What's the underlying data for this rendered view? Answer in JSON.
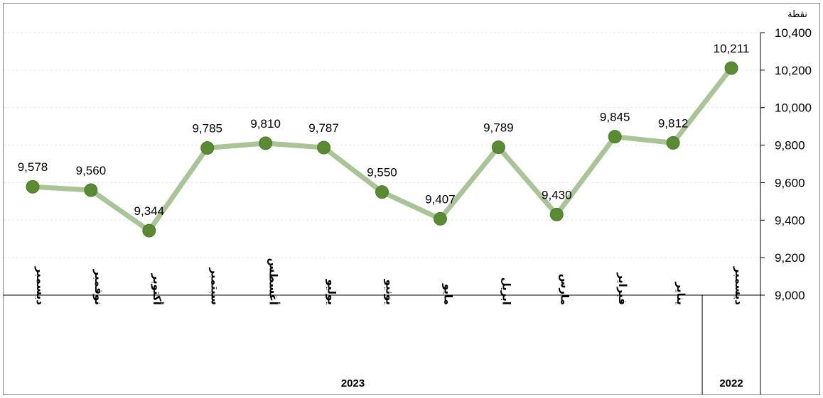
{
  "chart_data": {
    "type": "line",
    "unit_label": "نقطة",
    "categories": [
      "ديسمبر",
      "يناير",
      "فبراير",
      "مارس",
      "ابريل",
      "مايو",
      "يونيو",
      "يوليو",
      "أغسطس",
      "سبتمبر",
      "أكتوبر",
      "نوفمبر",
      "ديسمبر"
    ],
    "category_years": [
      "2022",
      "2023",
      "2023",
      "2023",
      "2023",
      "2023",
      "2023",
      "2023",
      "2023",
      "2023",
      "2023",
      "2023",
      "2023"
    ],
    "values": [
      10211,
      9812,
      9845,
      9430,
      9789,
      9407,
      9550,
      9787,
      9810,
      9785,
      9344,
      9560,
      9578
    ],
    "data_labels": [
      "10,211",
      "9,812",
      "9,845",
      "9,430",
      "9,789",
      "9,407",
      "9,550",
      "9,787",
      "9,810",
      "9,785",
      "9,344",
      "9,560",
      "9,578"
    ],
    "year_groups": [
      {
        "label": "2022",
        "count": 1
      },
      {
        "label": "2023",
        "count": 12
      }
    ],
    "ylim": [
      9000,
      10400
    ],
    "yticks": [
      "9,000",
      "9,200",
      "9,400",
      "9,600",
      "9,800",
      "10,000",
      "10,200",
      "10,400"
    ],
    "y_axis_side": "right",
    "x_axis_direction": "right-to-left",
    "grid": true,
    "colors": {
      "line": "#a9c497",
      "marker": "#5a8a32",
      "marker_edge": "#4a7a28"
    }
  }
}
